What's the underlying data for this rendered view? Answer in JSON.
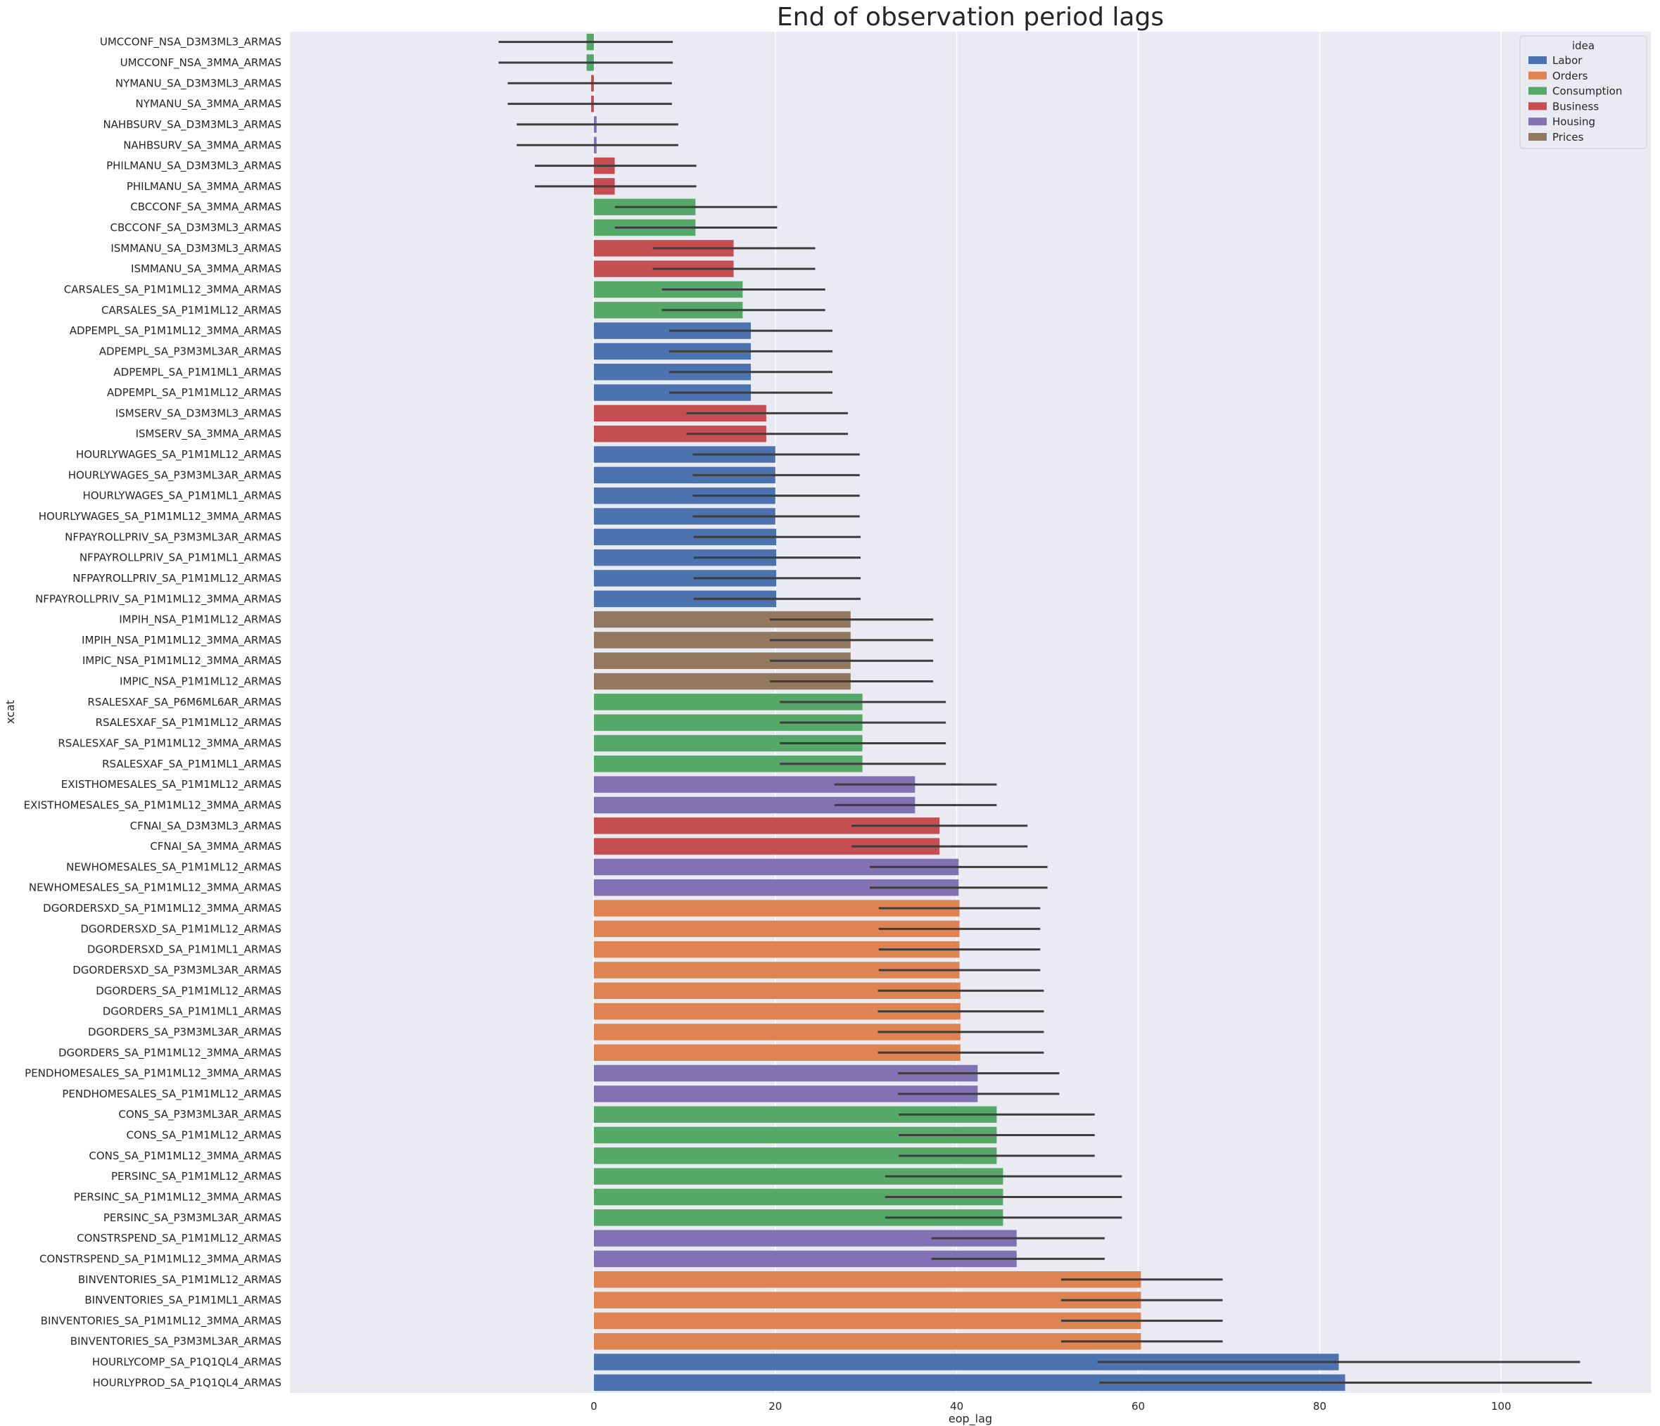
{
  "chart_data": {
    "type": "bar",
    "orientation": "horizontal",
    "title": "End of observation period lags",
    "xlabel": "eop_lag",
    "ylabel": "xcat",
    "xlim": [
      -33.5,
      116.5
    ],
    "xticks": [
      0,
      20,
      40,
      60,
      80,
      100
    ],
    "legend": {
      "title": "idea",
      "position": "top-right",
      "entries": [
        {
          "name": "Labor",
          "color": "#4c72b0"
        },
        {
          "name": "Orders",
          "color": "#dd8452"
        },
        {
          "name": "Consumption",
          "color": "#55a868"
        },
        {
          "name": "Business",
          "color": "#c44e52"
        },
        {
          "name": "Housing",
          "color": "#8172b3"
        },
        {
          "name": "Prices",
          "color": "#937860"
        }
      ]
    },
    "bars": [
      {
        "label": "UMCCONF_NSA_D3M3ML3_ARMAS",
        "value": -0.8,
        "ci": [
          -10.5,
          8.7
        ],
        "idea": "Consumption"
      },
      {
        "label": "UMCCONF_NSA_3MMA_ARMAS",
        "value": -0.8,
        "ci": [
          -10.5,
          8.7
        ],
        "idea": "Consumption"
      },
      {
        "label": "NYMANU_SA_D3M3ML3_ARMAS",
        "value": -0.3,
        "ci": [
          -9.5,
          8.6
        ],
        "idea": "Business"
      },
      {
        "label": "NYMANU_SA_3MMA_ARMAS",
        "value": -0.3,
        "ci": [
          -9.5,
          8.6
        ],
        "idea": "Business"
      },
      {
        "label": "NAHBSURV_SA_D3M3ML3_ARMAS",
        "value": 0.3,
        "ci": [
          -8.5,
          9.3
        ],
        "idea": "Housing"
      },
      {
        "label": "NAHBSURV_SA_3MMA_ARMAS",
        "value": 0.3,
        "ci": [
          -8.5,
          9.3
        ],
        "idea": "Housing"
      },
      {
        "label": "PHILMANU_SA_D3M3ML3_ARMAS",
        "value": 2.3,
        "ci": [
          -6.5,
          11.3
        ],
        "idea": "Business"
      },
      {
        "label": "PHILMANU_SA_3MMA_ARMAS",
        "value": 2.3,
        "ci": [
          -6.5,
          11.3
        ],
        "idea": "Business"
      },
      {
        "label": "CBCCONF_SA_3MMA_ARMAS",
        "value": 11.2,
        "ci": [
          2.3,
          20.2
        ],
        "idea": "Consumption"
      },
      {
        "label": "CBCCONF_SA_D3M3ML3_ARMAS",
        "value": 11.2,
        "ci": [
          2.3,
          20.2
        ],
        "idea": "Consumption"
      },
      {
        "label": "ISMMANU_SA_D3M3ML3_ARMAS",
        "value": 15.4,
        "ci": [
          6.5,
          24.4
        ],
        "idea": "Business"
      },
      {
        "label": "ISMMANU_SA_3MMA_ARMAS",
        "value": 15.4,
        "ci": [
          6.5,
          24.4
        ],
        "idea": "Business"
      },
      {
        "label": "CARSALES_SA_P1M1ML12_3MMA_ARMAS",
        "value": 16.4,
        "ci": [
          7.5,
          25.5
        ],
        "idea": "Consumption"
      },
      {
        "label": "CARSALES_SA_P1M1ML12_ARMAS",
        "value": 16.4,
        "ci": [
          7.5,
          25.5
        ],
        "idea": "Consumption"
      },
      {
        "label": "ADPEMPL_SA_P1M1ML12_3MMA_ARMAS",
        "value": 17.3,
        "ci": [
          8.3,
          26.3
        ],
        "idea": "Labor"
      },
      {
        "label": "ADPEMPL_SA_P3M3ML3AR_ARMAS",
        "value": 17.3,
        "ci": [
          8.3,
          26.3
        ],
        "idea": "Labor"
      },
      {
        "label": "ADPEMPL_SA_P1M1ML1_ARMAS",
        "value": 17.3,
        "ci": [
          8.3,
          26.3
        ],
        "idea": "Labor"
      },
      {
        "label": "ADPEMPL_SA_P1M1ML12_ARMAS",
        "value": 17.3,
        "ci": [
          8.3,
          26.3
        ],
        "idea": "Labor"
      },
      {
        "label": "ISMSERV_SA_D3M3ML3_ARMAS",
        "value": 19.0,
        "ci": [
          10.2,
          28.0
        ],
        "idea": "Business"
      },
      {
        "label": "ISMSERV_SA_3MMA_ARMAS",
        "value": 19.0,
        "ci": [
          10.2,
          28.0
        ],
        "idea": "Business"
      },
      {
        "label": "HOURLYWAGES_SA_P1M1ML12_ARMAS",
        "value": 20.0,
        "ci": [
          10.9,
          29.3
        ],
        "idea": "Labor"
      },
      {
        "label": "HOURLYWAGES_SA_P3M3ML3AR_ARMAS",
        "value": 20.0,
        "ci": [
          10.9,
          29.3
        ],
        "idea": "Labor"
      },
      {
        "label": "HOURLYWAGES_SA_P1M1ML1_ARMAS",
        "value": 20.0,
        "ci": [
          10.9,
          29.3
        ],
        "idea": "Labor"
      },
      {
        "label": "HOURLYWAGES_SA_P1M1ML12_3MMA_ARMAS",
        "value": 20.0,
        "ci": [
          10.9,
          29.3
        ],
        "idea": "Labor"
      },
      {
        "label": "NFPAYROLLPRIV_SA_P3M3ML3AR_ARMAS",
        "value": 20.1,
        "ci": [
          11.0,
          29.4
        ],
        "idea": "Labor"
      },
      {
        "label": "NFPAYROLLPRIV_SA_P1M1ML1_ARMAS",
        "value": 20.1,
        "ci": [
          11.0,
          29.4
        ],
        "idea": "Labor"
      },
      {
        "label": "NFPAYROLLPRIV_SA_P1M1ML12_ARMAS",
        "value": 20.1,
        "ci": [
          11.0,
          29.4
        ],
        "idea": "Labor"
      },
      {
        "label": "NFPAYROLLPRIV_SA_P1M1ML12_3MMA_ARMAS",
        "value": 20.1,
        "ci": [
          11.0,
          29.4
        ],
        "idea": "Labor"
      },
      {
        "label": "IMPIH_NSA_P1M1ML12_ARMAS",
        "value": 28.3,
        "ci": [
          19.4,
          37.4
        ],
        "idea": "Prices"
      },
      {
        "label": "IMPIH_NSA_P1M1ML12_3MMA_ARMAS",
        "value": 28.3,
        "ci": [
          19.4,
          37.4
        ],
        "idea": "Prices"
      },
      {
        "label": "IMPIC_NSA_P1M1ML12_3MMA_ARMAS",
        "value": 28.3,
        "ci": [
          19.4,
          37.4
        ],
        "idea": "Prices"
      },
      {
        "label": "IMPIC_NSA_P1M1ML12_ARMAS",
        "value": 28.3,
        "ci": [
          19.4,
          37.4
        ],
        "idea": "Prices"
      },
      {
        "label": "RSALESXAF_SA_P6M6ML6AR_ARMAS",
        "value": 29.6,
        "ci": [
          20.5,
          38.8
        ],
        "idea": "Consumption"
      },
      {
        "label": "RSALESXAF_SA_P1M1ML12_ARMAS",
        "value": 29.6,
        "ci": [
          20.5,
          38.8
        ],
        "idea": "Consumption"
      },
      {
        "label": "RSALESXAF_SA_P1M1ML12_3MMA_ARMAS",
        "value": 29.6,
        "ci": [
          20.5,
          38.8
        ],
        "idea": "Consumption"
      },
      {
        "label": "RSALESXAF_SA_P1M1ML1_ARMAS",
        "value": 29.6,
        "ci": [
          20.5,
          38.8
        ],
        "idea": "Consumption"
      },
      {
        "label": "EXISTHOMESALES_SA_P1M1ML12_ARMAS",
        "value": 35.4,
        "ci": [
          26.5,
          44.4
        ],
        "idea": "Housing"
      },
      {
        "label": "EXISTHOMESALES_SA_P1M1ML12_3MMA_ARMAS",
        "value": 35.4,
        "ci": [
          26.5,
          44.4
        ],
        "idea": "Housing"
      },
      {
        "label": "CFNAI_SA_D3M3ML3_ARMAS",
        "value": 38.1,
        "ci": [
          28.4,
          47.8
        ],
        "idea": "Business"
      },
      {
        "label": "CFNAI_SA_3MMA_ARMAS",
        "value": 38.1,
        "ci": [
          28.4,
          47.8
        ],
        "idea": "Business"
      },
      {
        "label": "NEWHOMESALES_SA_P1M1ML12_ARMAS",
        "value": 40.2,
        "ci": [
          30.4,
          50.0
        ],
        "idea": "Housing"
      },
      {
        "label": "NEWHOMESALES_SA_P1M1ML12_3MMA_ARMAS",
        "value": 40.2,
        "ci": [
          30.4,
          50.0
        ],
        "idea": "Housing"
      },
      {
        "label": "DGORDERSXD_SA_P1M1ML12_3MMA_ARMAS",
        "value": 40.3,
        "ci": [
          31.4,
          49.2
        ],
        "idea": "Orders"
      },
      {
        "label": "DGORDERSXD_SA_P1M1ML12_ARMAS",
        "value": 40.3,
        "ci": [
          31.4,
          49.2
        ],
        "idea": "Orders"
      },
      {
        "label": "DGORDERSXD_SA_P1M1ML1_ARMAS",
        "value": 40.3,
        "ci": [
          31.4,
          49.2
        ],
        "idea": "Orders"
      },
      {
        "label": "DGORDERSXD_SA_P3M3ML3AR_ARMAS",
        "value": 40.3,
        "ci": [
          31.4,
          49.2
        ],
        "idea": "Orders"
      },
      {
        "label": "DGORDERS_SA_P1M1ML12_ARMAS",
        "value": 40.4,
        "ci": [
          31.3,
          49.6
        ],
        "idea": "Orders"
      },
      {
        "label": "DGORDERS_SA_P1M1ML1_ARMAS",
        "value": 40.4,
        "ci": [
          31.3,
          49.6
        ],
        "idea": "Orders"
      },
      {
        "label": "DGORDERS_SA_P3M3ML3AR_ARMAS",
        "value": 40.4,
        "ci": [
          31.3,
          49.6
        ],
        "idea": "Orders"
      },
      {
        "label": "DGORDERS_SA_P1M1ML12_3MMA_ARMAS",
        "value": 40.4,
        "ci": [
          31.3,
          49.6
        ],
        "idea": "Orders"
      },
      {
        "label": "PENDHOMESALES_SA_P1M1ML12_3MMA_ARMAS",
        "value": 42.3,
        "ci": [
          33.5,
          51.3
        ],
        "idea": "Housing"
      },
      {
        "label": "PENDHOMESALES_SA_P1M1ML12_ARMAS",
        "value": 42.3,
        "ci": [
          33.5,
          51.3
        ],
        "idea": "Housing"
      },
      {
        "label": "CONS_SA_P3M3ML3AR_ARMAS",
        "value": 44.4,
        "ci": [
          33.6,
          55.2
        ],
        "idea": "Consumption"
      },
      {
        "label": "CONS_SA_P1M1ML12_ARMAS",
        "value": 44.4,
        "ci": [
          33.6,
          55.2
        ],
        "idea": "Consumption"
      },
      {
        "label": "CONS_SA_P1M1ML12_3MMA_ARMAS",
        "value": 44.4,
        "ci": [
          33.6,
          55.2
        ],
        "idea": "Consumption"
      },
      {
        "label": "PERSINC_SA_P1M1ML12_ARMAS",
        "value": 45.1,
        "ci": [
          32.1,
          58.2
        ],
        "idea": "Consumption"
      },
      {
        "label": "PERSINC_SA_P1M1ML12_3MMA_ARMAS",
        "value": 45.1,
        "ci": [
          32.1,
          58.2
        ],
        "idea": "Consumption"
      },
      {
        "label": "PERSINC_SA_P3M3ML3AR_ARMAS",
        "value": 45.1,
        "ci": [
          32.1,
          58.2
        ],
        "idea": "Consumption"
      },
      {
        "label": "CONSTRSPEND_SA_P1M1ML12_ARMAS",
        "value": 46.6,
        "ci": [
          37.2,
          56.3
        ],
        "idea": "Housing"
      },
      {
        "label": "CONSTRSPEND_SA_P1M1ML12_3MMA_ARMAS",
        "value": 46.6,
        "ci": [
          37.2,
          56.3
        ],
        "idea": "Housing"
      },
      {
        "label": "BINVENTORIES_SA_P1M1ML12_ARMAS",
        "value": 60.3,
        "ci": [
          51.5,
          69.3
        ],
        "idea": "Orders"
      },
      {
        "label": "BINVENTORIES_SA_P1M1ML1_ARMAS",
        "value": 60.3,
        "ci": [
          51.5,
          69.3
        ],
        "idea": "Orders"
      },
      {
        "label": "BINVENTORIES_SA_P1M1ML12_3MMA_ARMAS",
        "value": 60.3,
        "ci": [
          51.5,
          69.3
        ],
        "idea": "Orders"
      },
      {
        "label": "BINVENTORIES_SA_P3M3ML3AR_ARMAS",
        "value": 60.3,
        "ci": [
          51.5,
          69.3
        ],
        "idea": "Orders"
      },
      {
        "label": "HOURLYCOMP_SA_P1Q1QL4_ARMAS",
        "value": 82.1,
        "ci": [
          55.5,
          108.7
        ],
        "idea": "Labor"
      },
      {
        "label": "HOURLYPROD_SA_P1Q1QL4_ARMAS",
        "value": 82.8,
        "ci": [
          55.7,
          110.0
        ],
        "idea": "Labor"
      }
    ]
  }
}
